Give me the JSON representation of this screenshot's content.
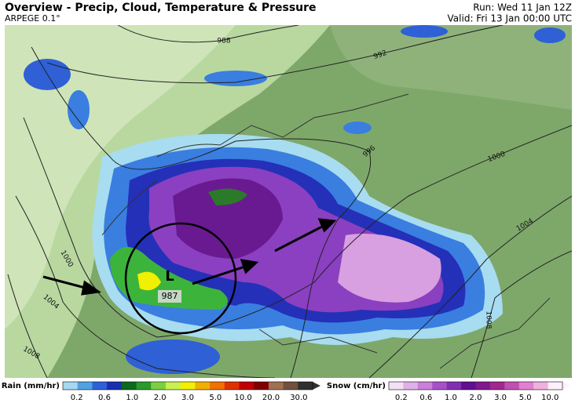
{
  "header": {
    "title": "Overview - Precip, Cloud, Temperature & Pressure",
    "model": "ARPEGE 0.1°",
    "run": "Run: Wed 11 Jan 12Z",
    "valid": "Valid: Fri 13 Jan 00:00 UTC"
  },
  "isobars": [
    {
      "label": "988"
    },
    {
      "label": "992"
    },
    {
      "label": "996"
    },
    {
      "label": "1000"
    },
    {
      "label": "1004"
    },
    {
      "label": "1000"
    },
    {
      "label": "1004"
    },
    {
      "label": "1008"
    },
    {
      "label": "1008"
    }
  ],
  "low": {
    "symbol": "L",
    "pressure": "987"
  },
  "legend": {
    "rain": {
      "title": "Rain (mm/hr)",
      "ticks": [
        "0.2",
        "0.6",
        "1.0",
        "2.0",
        "3.0",
        "5.0",
        "10.0",
        "20.0",
        "30.0"
      ]
    },
    "snow": {
      "title": "Snow (cm/hr)",
      "ticks": [
        "0.2",
        "0.6",
        "1.0",
        "2.0",
        "3.0",
        "5.0",
        "10.0"
      ]
    }
  }
}
